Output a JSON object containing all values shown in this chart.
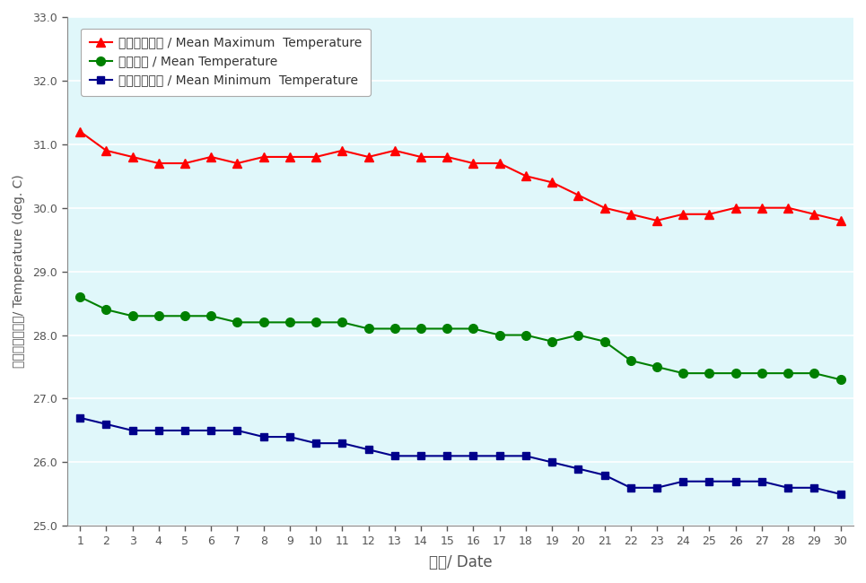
{
  "days": [
    1,
    2,
    3,
    4,
    5,
    6,
    7,
    8,
    9,
    10,
    11,
    12,
    13,
    14,
    15,
    16,
    17,
    18,
    19,
    20,
    21,
    22,
    23,
    24,
    25,
    26,
    27,
    28,
    29,
    30
  ],
  "mean_max": [
    31.2,
    30.9,
    30.8,
    30.7,
    30.7,
    30.8,
    30.7,
    30.8,
    30.8,
    30.8,
    30.9,
    30.8,
    30.9,
    30.8,
    30.8,
    30.7,
    30.7,
    30.5,
    30.4,
    30.2,
    30.0,
    29.9,
    29.8,
    29.9,
    29.9,
    30.0,
    30.0,
    30.0,
    29.9,
    29.8
  ],
  "mean_temp": [
    28.6,
    28.4,
    28.3,
    28.3,
    28.3,
    28.3,
    28.2,
    28.2,
    28.2,
    28.2,
    28.2,
    28.1,
    28.1,
    28.1,
    28.1,
    28.1,
    28.0,
    28.0,
    27.9,
    28.0,
    27.9,
    27.6,
    27.5,
    27.4,
    27.4,
    27.4,
    27.4,
    27.4,
    27.4,
    27.3
  ],
  "mean_min": [
    26.7,
    26.6,
    26.5,
    26.5,
    26.5,
    26.5,
    26.5,
    26.4,
    26.4,
    26.3,
    26.3,
    26.2,
    26.1,
    26.1,
    26.1,
    26.1,
    26.1,
    26.1,
    26.0,
    25.9,
    25.8,
    25.6,
    25.6,
    25.7,
    25.7,
    25.7,
    25.7,
    25.6,
    25.6,
    25.5
  ],
  "color_max": "#FF0000",
  "color_mean": "#008000",
  "color_min": "#00008B",
  "bg_color": "#E0F7FA",
  "plot_bg": "#E0F7FA",
  "outer_bg": "#FFFFFF",
  "xlabel": "日期/ Date",
  "ylabel": "溫度（攝氏度）/ Temperature (deg. C)",
  "legend_max": "平均最高氣溫 / Mean Maximum  Temperature",
  "legend_mean": "平均氣溫 / Mean Temperature",
  "legend_min": "平均最低氣溫 / Mean Minimum  Temperature",
  "ylim": [
    25.0,
    33.0
  ],
  "yticks": [
    25.0,
    26.0,
    27.0,
    28.0,
    29.0,
    30.0,
    31.0,
    32.0,
    33.0
  ],
  "grid_color": "#FFFFFF",
  "tick_color": "#555555",
  "label_color": "#555555"
}
